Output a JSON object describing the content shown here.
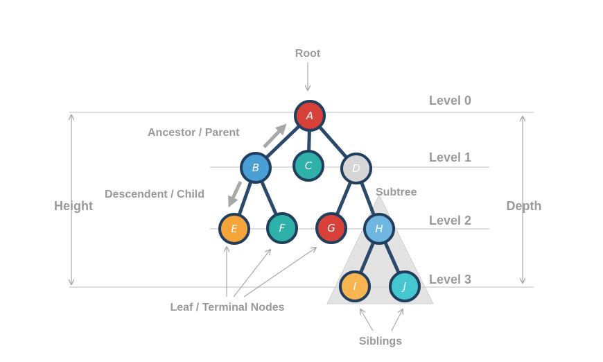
{
  "labels": {
    "root": "Root",
    "ancestor": "Ancestor / Parent",
    "descendent": "Descendent / Child",
    "height": "Height",
    "depth": "Depth",
    "subtree": "Subtree",
    "leaf": "Leaf / Terminal Nodes",
    "siblings": "Siblings"
  },
  "levels": [
    "Level 0",
    "Level 1",
    "Level 2",
    "Level 3"
  ],
  "nodes": [
    {
      "id": "A",
      "label": "A",
      "color": "#d8403a"
    },
    {
      "id": "B",
      "label": "B",
      "color": "#4a9fd4"
    },
    {
      "id": "C",
      "label": "C",
      "color": "#2fb0a8"
    },
    {
      "id": "D",
      "label": "D",
      "color": "#d6d6d6"
    },
    {
      "id": "E",
      "label": "E",
      "color": "#f5a43a"
    },
    {
      "id": "F",
      "label": "F",
      "color": "#2fb0a8"
    },
    {
      "id": "G",
      "label": "G",
      "color": "#d8403a"
    },
    {
      "id": "H",
      "label": "H",
      "color": "#6fb6e0"
    },
    {
      "id": "I",
      "label": "I",
      "color": "#f7b450"
    },
    {
      "id": "J",
      "label": "J",
      "color": "#44c7cf"
    }
  ],
  "edges": [
    [
      "A",
      "B"
    ],
    [
      "A",
      "C"
    ],
    [
      "A",
      "D"
    ],
    [
      "B",
      "E"
    ],
    [
      "B",
      "F"
    ],
    [
      "D",
      "G"
    ],
    [
      "D",
      "H"
    ],
    [
      "H",
      "I"
    ],
    [
      "H",
      "J"
    ]
  ]
}
